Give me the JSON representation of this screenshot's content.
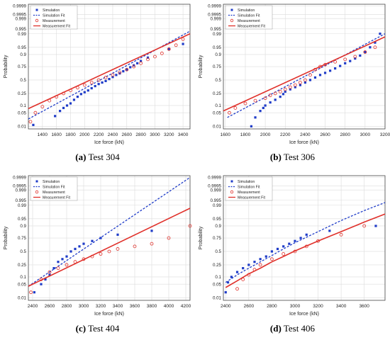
{
  "chart_data": [
    {
      "type": "scatter",
      "caption_letter": "(a)",
      "caption_text": "Test 304",
      "xlabel": "Ice force (kN)",
      "ylabel": "Probability",
      "xlim": [
        1200,
        3500
      ],
      "xticks": [
        1400,
        1600,
        1800,
        2000,
        2200,
        2400,
        2600,
        2800,
        3000,
        3200,
        3400
      ],
      "yticks": [
        0.01,
        0.05,
        0.1,
        0.25,
        0.5,
        0.75,
        0.9,
        0.95,
        0.99,
        0.995,
        0.999,
        0.9995,
        0.9999
      ],
      "ylim": [
        0.007,
        0.99993
      ],
      "grid": true,
      "legend_position": "top-left",
      "series": [
        {
          "name": "Simulation",
          "kind": "points",
          "color": "#1f3cc8",
          "x": [
            1270,
            1580,
            1650,
            1700,
            1750,
            1800,
            1850,
            1900,
            1950,
            2000,
            2050,
            2100,
            2150,
            2200,
            2250,
            2300,
            2350,
            2400,
            2450,
            2500,
            2550,
            2600,
            2650,
            2700,
            2750,
            2800,
            2900,
            3200,
            3400
          ],
          "y": [
            0.012,
            0.035,
            0.06,
            0.08,
            0.1,
            0.12,
            0.16,
            0.2,
            0.24,
            0.27,
            0.3,
            0.34,
            0.38,
            0.42,
            0.45,
            0.48,
            0.52,
            0.56,
            0.6,
            0.63,
            0.67,
            0.7,
            0.74,
            0.77,
            0.8,
            0.83,
            0.87,
            0.94,
            0.965
          ]
        },
        {
          "name": "Simulation Fit",
          "kind": "line",
          "dash": true,
          "color": "#1f3cc8",
          "x": [
            1200,
            3500
          ],
          "y": [
            0.025,
            0.993
          ]
        },
        {
          "name": "Measurement",
          "kind": "circles",
          "color": "#e0302a",
          "x": [
            1230,
            1300,
            1400,
            1500,
            1600,
            1700,
            1800,
            1900,
            2000,
            2100,
            2200,
            2300,
            2400,
            2500,
            2600,
            2700,
            2800,
            2900,
            3000,
            3100,
            3200,
            3300,
            3400
          ],
          "y": [
            0.018,
            0.05,
            0.09,
            0.15,
            0.2,
            0.25,
            0.3,
            0.35,
            0.4,
            0.45,
            0.5,
            0.55,
            0.6,
            0.65,
            0.7,
            0.75,
            0.8,
            0.85,
            0.88,
            0.91,
            0.94,
            0.96,
            0.98
          ]
        },
        {
          "name": "Measurement Fit",
          "kind": "line",
          "dash": false,
          "color": "#e0302a",
          "x": [
            1200,
            3500
          ],
          "y": [
            0.075,
            0.99
          ]
        }
      ]
    },
    {
      "type": "scatter",
      "caption_letter": "(b)",
      "caption_text": "Test 306",
      "xlabel": "Ice force (kN)",
      "ylabel": "Probability",
      "xlim": [
        1580,
        3200
      ],
      "xticks": [
        1600,
        1800,
        2000,
        2200,
        2400,
        2600,
        2800,
        3000,
        3200
      ],
      "yticks": [
        0.01,
        0.05,
        0.1,
        0.25,
        0.5,
        0.75,
        0.9,
        0.95,
        0.99,
        0.995,
        0.999,
        0.9995,
        0.9999
      ],
      "ylim": [
        0.007,
        0.99993
      ],
      "grid": true,
      "legend_position": "top-left",
      "series": [
        {
          "name": "Simulation",
          "kind": "points",
          "color": "#1f3cc8",
          "x": [
            1860,
            1900,
            1950,
            1980,
            2000,
            2050,
            2100,
            2150,
            2180,
            2200,
            2250,
            2300,
            2350,
            2400,
            2450,
            2500,
            2550,
            2600,
            2650,
            2700,
            2750,
            2800,
            2850,
            2900,
            2950,
            3000,
            3050,
            3100,
            3150
          ],
          "y": [
            0.01,
            0.03,
            0.06,
            0.08,
            0.1,
            0.13,
            0.16,
            0.2,
            0.24,
            0.28,
            0.32,
            0.36,
            0.4,
            0.45,
            0.5,
            0.55,
            0.6,
            0.64,
            0.68,
            0.72,
            0.76,
            0.8,
            0.83,
            0.86,
            0.89,
            0.92,
            0.95,
            0.97,
            0.99
          ]
        },
        {
          "name": "Simulation Fit",
          "kind": "line",
          "dash": true,
          "color": "#1f3cc8",
          "x": [
            1620,
            3200
          ],
          "y": [
            0.03,
            0.99
          ]
        },
        {
          "name": "Measurement",
          "kind": "circles",
          "color": "#e0302a",
          "x": [
            1640,
            1700,
            1800,
            1900,
            2000,
            2050,
            2100,
            2150,
            2200,
            2250,
            2300,
            2350,
            2400,
            2450,
            2500,
            2550,
            2600,
            2700,
            2800,
            2900,
            3000,
            3100
          ],
          "y": [
            0.05,
            0.08,
            0.12,
            0.15,
            0.18,
            0.22,
            0.25,
            0.28,
            0.32,
            0.36,
            0.4,
            0.45,
            0.5,
            0.6,
            0.7,
            0.75,
            0.78,
            0.82,
            0.85,
            0.88,
            0.92,
            0.95
          ]
        },
        {
          "name": "Measurement Fit",
          "kind": "line",
          "dash": false,
          "color": "#e0302a",
          "x": [
            1580,
            3200
          ],
          "y": [
            0.06,
            0.985
          ]
        }
      ]
    },
    {
      "type": "scatter",
      "caption_letter": "(c)",
      "caption_text": "Test 404",
      "xlabel": "Ice force (kN)",
      "ylabel": "Probability",
      "xlim": [
        2350,
        4250
      ],
      "xticks": [
        2400,
        2600,
        2800,
        3000,
        3200,
        3400,
        3600,
        3800,
        4000,
        4200
      ],
      "yticks": [
        0.01,
        0.05,
        0.1,
        0.25,
        0.5,
        0.75,
        0.9,
        0.95,
        0.99,
        0.995,
        0.999,
        0.9995,
        0.9999
      ],
      "ylim": [
        0.007,
        0.99993
      ],
      "grid": true,
      "legend_position": "top-left",
      "series": [
        {
          "name": "Simulation",
          "kind": "points",
          "color": "#1f3cc8",
          "x": [
            2420,
            2500,
            2550,
            2600,
            2650,
            2700,
            2750,
            2800,
            2850,
            2900,
            2950,
            3000,
            3100,
            3200,
            3400,
            3800
          ],
          "y": [
            0.02,
            0.05,
            0.08,
            0.12,
            0.2,
            0.3,
            0.35,
            0.4,
            0.5,
            0.55,
            0.6,
            0.65,
            0.7,
            0.75,
            0.8,
            0.85
          ]
        },
        {
          "name": "Simulation Fit",
          "kind": "line",
          "dash": true,
          "color": "#1f3cc8",
          "x": [
            2350,
            4250
          ],
          "y": [
            0.04,
            0.9999
          ]
        },
        {
          "name": "Measurement",
          "kind": "circles",
          "color": "#e0302a",
          "x": [
            2380,
            2500,
            2600,
            2700,
            2800,
            2900,
            3000,
            3100,
            3200,
            3300,
            3400,
            3600,
            3800,
            4000,
            4250
          ],
          "y": [
            0.02,
            0.08,
            0.15,
            0.2,
            0.25,
            0.3,
            0.35,
            0.4,
            0.45,
            0.5,
            0.55,
            0.6,
            0.65,
            0.75,
            0.9
          ]
        },
        {
          "name": "Measurement Fit",
          "kind": "line",
          "dash": false,
          "color": "#e0302a",
          "x": [
            2350,
            4250
          ],
          "y": [
            0.04,
            0.985
          ]
        }
      ]
    },
    {
      "type": "scatter",
      "caption_letter": "(d)",
      "caption_text": "Test 406",
      "xlabel": "Ice force (kN)",
      "ylabel": "Probability",
      "xlim": [
        2380,
        3780
      ],
      "xticks": [
        2400,
        2600,
        2800,
        3000,
        3200,
        3400,
        3600
      ],
      "yticks": [
        0.01,
        0.05,
        0.1,
        0.25,
        0.5,
        0.75,
        0.9,
        0.95,
        0.99,
        0.995,
        0.999,
        0.9995,
        0.9999
      ],
      "ylim": [
        0.007,
        0.99993
      ],
      "grid": true,
      "legend_position": "top-left",
      "series": [
        {
          "name": "Simulation",
          "kind": "points",
          "color": "#1f3cc8",
          "x": [
            2400,
            2420,
            2450,
            2500,
            2550,
            2600,
            2650,
            2700,
            2750,
            2800,
            2850,
            2900,
            2950,
            3000,
            3050,
            3100,
            3300,
            3700
          ],
          "y": [
            0.02,
            0.06,
            0.1,
            0.15,
            0.2,
            0.25,
            0.3,
            0.35,
            0.4,
            0.5,
            0.55,
            0.6,
            0.65,
            0.7,
            0.75,
            0.8,
            0.85,
            0.9
          ]
        },
        {
          "name": "Simulation Fit",
          "kind": "line",
          "dash": true,
          "color": "#1f3cc8",
          "x": [
            2400,
            2500,
            2600,
            2700,
            2800,
            2900,
            3000,
            3200,
            3400,
            3600,
            3780
          ],
          "y": [
            0.06,
            0.12,
            0.2,
            0.3,
            0.42,
            0.55,
            0.67,
            0.84,
            0.94,
            0.98,
            0.993
          ]
        },
        {
          "name": "Measurement",
          "kind": "circles",
          "color": "#e0302a",
          "x": [
            2500,
            2550,
            2600,
            2650,
            2700,
            2800,
            2900,
            3000,
            3100,
            3200,
            3400,
            3600
          ],
          "y": [
            0.03,
            0.08,
            0.12,
            0.18,
            0.25,
            0.35,
            0.45,
            0.5,
            0.6,
            0.7,
            0.8,
            0.9
          ]
        },
        {
          "name": "Measurement Fit",
          "kind": "line",
          "dash": false,
          "color": "#e0302a",
          "x": [
            2400,
            2500,
            2600,
            2700,
            2800,
            2900,
            3000,
            3200,
            3400,
            3600,
            3780
          ],
          "y": [
            0.035,
            0.07,
            0.13,
            0.2,
            0.3,
            0.4,
            0.51,
            0.7,
            0.84,
            0.93,
            0.97
          ]
        }
      ]
    }
  ]
}
